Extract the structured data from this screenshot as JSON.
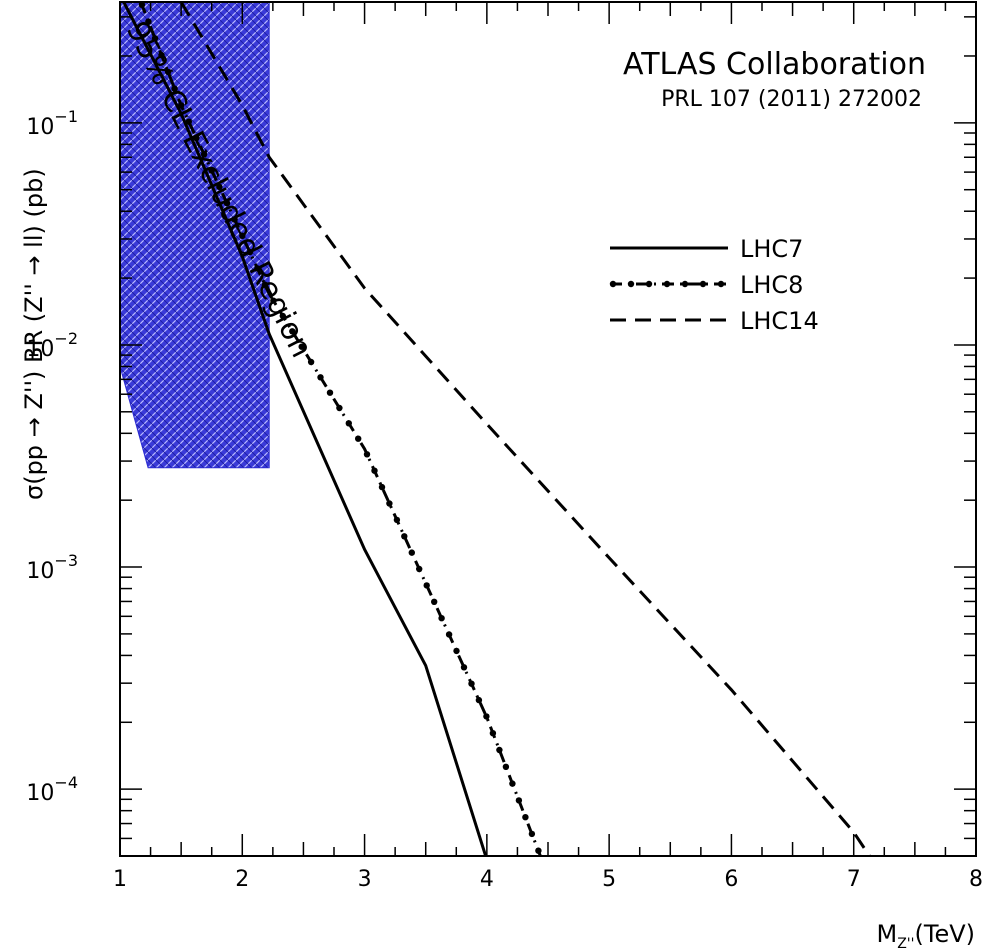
{
  "chart_data": {
    "type": "line",
    "xlabel_main": "M",
    "xlabel_sub": "Z''",
    "xlabel_unit": "(TeV)",
    "ylabel": "σ(pp → Z'') BR (Z'' → ll) (pb)",
    "x_range": [
      1,
      8
    ],
    "y_range": [
      5e-05,
      0.35
    ],
    "y_scale": "log",
    "x_ticks": [
      {
        "value": 1,
        "label": "1"
      },
      {
        "value": 2,
        "label": "2"
      },
      {
        "value": 3,
        "label": "3"
      },
      {
        "value": 4,
        "label": "4"
      },
      {
        "value": 5,
        "label": "5"
      },
      {
        "value": 6,
        "label": "6"
      },
      {
        "value": 7,
        "label": "7"
      },
      {
        "value": 8,
        "label": "8"
      }
    ],
    "y_ticks": [
      {
        "value": 0.1,
        "base": "10",
        "exp": "−1"
      },
      {
        "value": 0.01,
        "base": "10",
        "exp": "−2"
      },
      {
        "value": 0.001,
        "base": "10",
        "exp": "−3"
      },
      {
        "value": 0.0001,
        "base": "10",
        "exp": "−4"
      }
    ],
    "annotations": {
      "collaboration": "ATLAS Collaboration",
      "reference": "PRL 107 (2011) 272002",
      "excluded_region": "95% CL Excluded Region"
    },
    "excluded_region": {
      "color": "#2a2ad0",
      "polygon": [
        [
          1.0,
          0.35
        ],
        [
          2.22,
          0.35
        ],
        [
          2.22,
          0.0028
        ],
        [
          1.23,
          0.0028
        ],
        [
          1.0,
          0.008
        ]
      ]
    },
    "legend_position": "right-middle",
    "series": [
      {
        "name": "LHC7",
        "style": "solid",
        "points": [
          [
            1.03,
            0.35
          ],
          [
            1.5,
            0.11
          ],
          [
            2.0,
            0.025
          ],
          [
            2.22,
            0.0112
          ],
          [
            3.0,
            0.0012
          ],
          [
            3.5,
            0.00036
          ],
          [
            4.0,
            4.8e-05
          ]
        ]
      },
      {
        "name": "LHC8",
        "style": "dash-dot",
        "points": [
          [
            1.17,
            0.35
          ],
          [
            1.5,
            0.12
          ],
          [
            2.0,
            0.031
          ],
          [
            2.22,
            0.017
          ],
          [
            3.0,
            0.0034
          ],
          [
            4.0,
            0.00021
          ],
          [
            4.45,
            4.8e-05
          ]
        ]
      },
      {
        "name": "LHC14",
        "style": "dashed",
        "points": [
          [
            1.5,
            0.35
          ],
          [
            2.0,
            0.12
          ],
          [
            2.22,
            0.07
          ],
          [
            3.0,
            0.018
          ],
          [
            4.0,
            0.0044
          ],
          [
            5.0,
            0.0011
          ],
          [
            6.0,
            0.00028
          ],
          [
            7.0,
            6.4e-05
          ],
          [
            7.15,
            4.8e-05
          ]
        ]
      }
    ]
  }
}
